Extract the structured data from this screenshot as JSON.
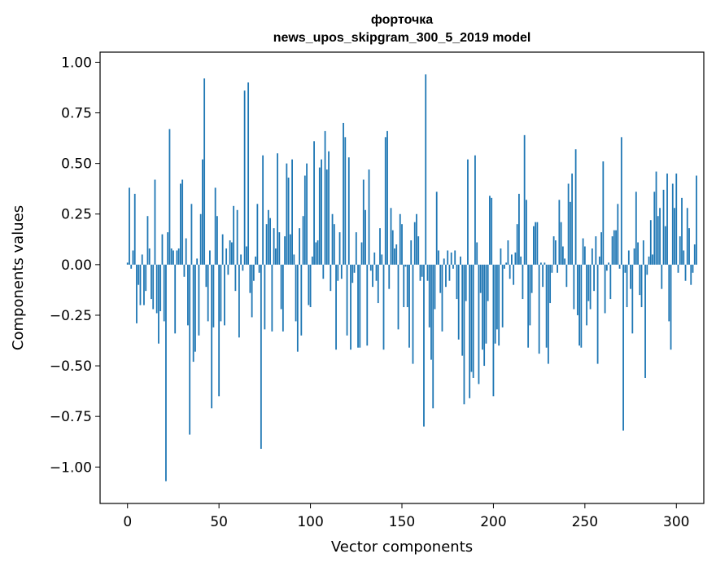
{
  "chart_data": {
    "type": "bar",
    "title": "форточка",
    "subtitle": "news_upos_skipgram_300_5_2019 model",
    "xlabel": "Vector components",
    "ylabel": "Components values",
    "xlim": [
      -15,
      315
    ],
    "ylim": [
      -1.18,
      1.05
    ],
    "xticks": [
      0,
      50,
      100,
      150,
      200,
      250,
      300
    ],
    "xtick_labels": [
      "0",
      "50",
      "100",
      "150",
      "200",
      "250",
      "300"
    ],
    "yticks": [
      1.0,
      0.75,
      0.5,
      0.25,
      0.0,
      -0.25,
      -0.5,
      -0.75,
      -1.0
    ],
    "ytick_labels": [
      "1.00",
      "0.75",
      "0.50",
      "0.25",
      "0.00",
      "−0.25",
      "−0.50",
      "−0.75",
      "−1.00"
    ],
    "bar_color": "#1f77b4",
    "grid": false,
    "values": [
      0.01,
      0.38,
      -0.02,
      0.07,
      0.35,
      -0.29,
      -0.1,
      -0.2,
      0.05,
      -0.2,
      -0.13,
      0.24,
      0.08,
      -0.17,
      -0.22,
      0.42,
      -0.24,
      -0.39,
      -0.23,
      0.15,
      -0.28,
      -1.07,
      0.16,
      0.67,
      0.08,
      0.07,
      -0.34,
      0.07,
      0.08,
      0.4,
      0.42,
      -0.06,
      0.13,
      -0.3,
      -0.84,
      0.3,
      -0.48,
      -0.43,
      0.03,
      -0.35,
      0.25,
      0.52,
      0.92,
      -0.11,
      -0.28,
      0.07,
      -0.71,
      -0.31,
      0.38,
      0.24,
      -0.65,
      -0.28,
      0.15,
      -0.3,
      0.08,
      -0.05,
      0.12,
      0.11,
      0.29,
      -0.13,
      0.27,
      -0.36,
      0.05,
      -0.03,
      0.86,
      0.09,
      0.9,
      -0.14,
      -0.26,
      -0.08,
      0.04,
      0.3,
      -0.04,
      -0.91,
      0.54,
      -0.32,
      0.2,
      0.27,
      0.23,
      -0.33,
      0.18,
      0.08,
      0.55,
      0.16,
      -0.22,
      -0.33,
      0.14,
      0.5,
      0.43,
      0.15,
      0.52,
      0.05,
      -0.28,
      -0.43,
      0.18,
      -0.35,
      0.24,
      0.44,
      0.5,
      -0.2,
      -0.21,
      0.04,
      0.61,
      0.11,
      0.12,
      0.48,
      0.52,
      -0.07,
      0.66,
      0.47,
      0.56,
      -0.13,
      0.25,
      0.2,
      -0.42,
      -0.08,
      0.16,
      -0.07,
      0.7,
      0.63,
      -0.35,
      0.53,
      -0.42,
      -0.09,
      -0.04,
      0.16,
      -0.41,
      -0.41,
      0.11,
      0.42,
      0.27,
      -0.4,
      0.47,
      -0.03,
      -0.11,
      0.06,
      -0.08,
      -0.19,
      0.18,
      0.05,
      -0.42,
      0.63,
      0.66,
      -0.12,
      0.28,
      0.17,
      0.08,
      0.1,
      -0.32,
      0.25,
      0.2,
      -0.21,
      -0.01,
      -0.21,
      -0.41,
      0.12,
      -0.49,
      0.21,
      0.25,
      0.14,
      -0.08,
      -0.06,
      -0.8,
      0.94,
      -0.08,
      -0.31,
      -0.47,
      -0.71,
      -0.22,
      0.36,
      0.07,
      -0.14,
      -0.33,
      0.03,
      -0.11,
      0.07,
      -0.08,
      0.06,
      -0.02,
      0.07,
      -0.17,
      -0.37,
      0.04,
      -0.45,
      -0.69,
      -0.18,
      0.52,
      -0.66,
      -0.53,
      -0.56,
      0.54,
      0.11,
      -0.59,
      -0.14,
      -0.42,
      -0.5,
      -0.39,
      -0.18,
      0.34,
      0.33,
      -0.65,
      -0.39,
      -0.32,
      -0.4,
      0.08,
      -0.31,
      -0.02,
      0.01,
      0.12,
      -0.07,
      0.05,
      -0.1,
      0.06,
      0.2,
      0.35,
      0.04,
      -0.17,
      0.64,
      0.32,
      -0.41,
      -0.3,
      -0.14,
      0.19,
      0.21,
      0.21,
      -0.44,
      0.01,
      -0.11,
      0.01,
      -0.41,
      -0.49,
      -0.19,
      -0.04,
      0.14,
      0.12,
      -0.04,
      0.32,
      0.21,
      0.09,
      0.03,
      -0.11,
      0.4,
      0.31,
      0.45,
      -0.22,
      0.57,
      -0.25,
      -0.4,
      -0.41,
      0.13,
      0.09,
      -0.3,
      -0.18,
      -0.22,
      0.08,
      -0.13,
      0.14,
      -0.49,
      0.04,
      0.16,
      0.51,
      -0.24,
      -0.03,
      0.01,
      -0.17,
      0.14,
      0.17,
      0.17,
      0.3,
      -0.02,
      0.63,
      -0.82,
      -0.04,
      -0.21,
      0.07,
      -0.12,
      -0.34,
      0.08,
      0.36,
      0.11,
      -0.15,
      -0.21,
      0.12,
      -0.56,
      -0.05,
      0.04,
      0.22,
      0.05,
      0.36,
      0.46,
      0.24,
      0.28,
      -0.12,
      0.37,
      0.19,
      0.45,
      -0.28,
      -0.42,
      0.4,
      0.28,
      0.45,
      -0.04,
      0.14,
      0.33,
      0.07,
      -0.08,
      0.28,
      0.18,
      -0.1,
      -0.04,
      0.1,
      0.44
    ]
  }
}
